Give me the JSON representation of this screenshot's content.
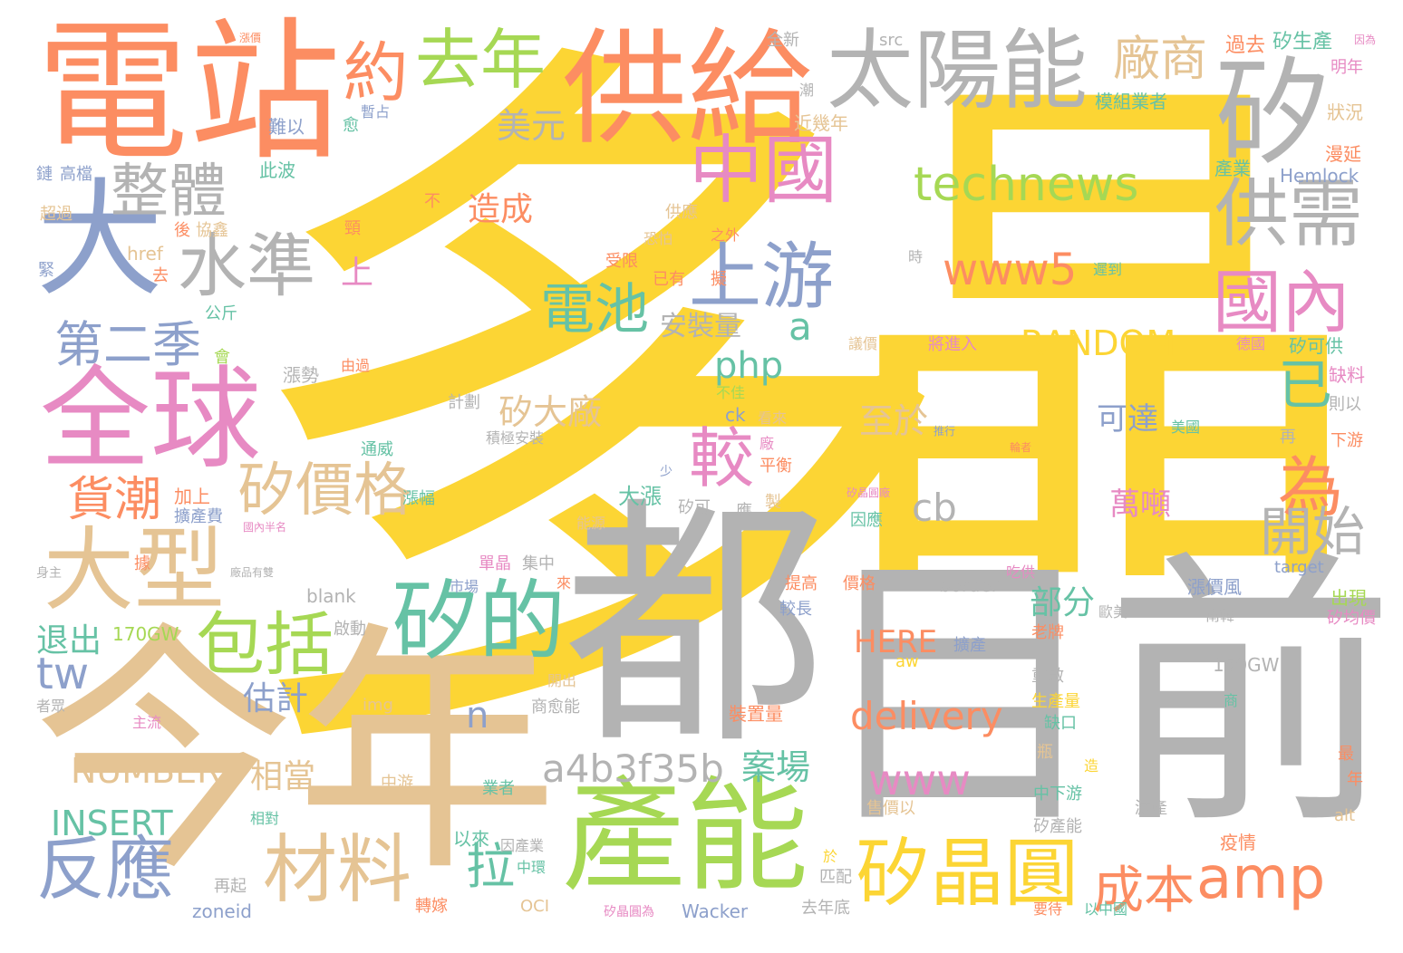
{
  "palette": {
    "yellow": "#fcd534",
    "grey": "#b3b3b3",
    "orange": "#fc8d62",
    "green": "#a6d854",
    "blue": "#8da0cb",
    "pink": "#e78ac3",
    "tan": "#e5c494",
    "teal": "#66c2a5",
    "background": "#ffffff"
  },
  "words": [
    {
      "text": "多",
      "color": "yellow"
    },
    {
      "text": "晶",
      "color": "yellow"
    },
    {
      "text": "目前",
      "color": "grey"
    },
    {
      "text": "都",
      "color": "grey"
    },
    {
      "text": "今年",
      "color": "tan"
    },
    {
      "text": "電站",
      "color": "orange"
    },
    {
      "text": "供給",
      "color": "orange"
    },
    {
      "text": "太陽能",
      "color": "grey"
    },
    {
      "text": "矽",
      "color": "grey"
    },
    {
      "text": "大",
      "color": "blue"
    },
    {
      "text": "全球",
      "color": "pink"
    },
    {
      "text": "產能",
      "color": "green"
    },
    {
      "text": "大型",
      "color": "tan"
    },
    {
      "text": "矽的",
      "color": "teal"
    },
    {
      "text": "中國",
      "color": "pink"
    },
    {
      "text": "供需",
      "color": "grey"
    },
    {
      "text": "國內",
      "color": "pink"
    },
    {
      "text": "上游",
      "color": "blue"
    },
    {
      "text": "去年",
      "color": "green"
    },
    {
      "text": "約",
      "color": "orange"
    },
    {
      "text": "廠商",
      "color": "tan"
    },
    {
      "text": "整體",
      "color": "grey"
    },
    {
      "text": "水準",
      "color": "grey"
    },
    {
      "text": "technews",
      "color": "green"
    },
    {
      "text": "www5",
      "color": "orange"
    },
    {
      "text": "包括",
      "color": "green"
    },
    {
      "text": "材料",
      "color": "tan"
    },
    {
      "text": "矽晶圓",
      "color": "yellow"
    },
    {
      "text": "amp",
      "color": "orange"
    },
    {
      "text": "反應",
      "color": "blue"
    },
    {
      "text": "矽價格",
      "color": "tan"
    },
    {
      "text": "電池",
      "color": "teal"
    },
    {
      "text": "較",
      "color": "pink"
    },
    {
      "text": "已",
      "color": "teal"
    },
    {
      "text": "為",
      "color": "orange"
    },
    {
      "text": "開始",
      "color": "grey"
    },
    {
      "text": "第二季",
      "color": "blue"
    },
    {
      "text": "貨潮",
      "color": "orange"
    },
    {
      "text": "美元",
      "color": "grey"
    },
    {
      "text": "www",
      "color": "pink"
    },
    {
      "text": "delivery",
      "color": "orange"
    },
    {
      "text": "a4b3f35b",
      "color": "grey"
    },
    {
      "text": "成本",
      "color": "orange"
    },
    {
      "text": "拉",
      "color": "teal"
    },
    {
      "text": "RANDOM",
      "color": "yellow"
    },
    {
      "text": "NUMBER",
      "color": "tan"
    },
    {
      "text": "INSERT",
      "color": "teal"
    },
    {
      "text": "php",
      "color": "teal"
    },
    {
      "text": "tw",
      "color": "blue"
    },
    {
      "text": "a",
      "color": "teal"
    },
    {
      "text": "cb",
      "color": "grey"
    },
    {
      "text": "n",
      "color": "blue"
    },
    {
      "text": "HERE",
      "color": "orange"
    },
    {
      "text": "造成",
      "color": "orange"
    },
    {
      "text": "安裝量",
      "color": "grey"
    },
    {
      "text": "矽大廠",
      "color": "tan"
    },
    {
      "text": "至於",
      "color": "tan"
    },
    {
      "text": "可達",
      "color": "blue"
    },
    {
      "text": "萬噸",
      "color": "pink"
    },
    {
      "text": "部分",
      "color": "teal"
    },
    {
      "text": "案場",
      "color": "teal"
    },
    {
      "text": "相當",
      "color": "tan"
    },
    {
      "text": "估計",
      "color": "blue"
    },
    {
      "text": "退出",
      "color": "teal"
    },
    {
      "text": "上",
      "color": "pink"
    },
    {
      "text": "170GW",
      "color": "green"
    },
    {
      "text": "150GW",
      "color": "grey"
    },
    {
      "text": "模組業者",
      "color": "teal"
    },
    {
      "text": "矽生產",
      "color": "teal"
    },
    {
      "text": "過去",
      "color": "orange"
    },
    {
      "text": "明年",
      "color": "pink"
    },
    {
      "text": "狀況",
      "color": "tan"
    },
    {
      "text": "漫延",
      "color": "orange"
    },
    {
      "text": "Hemlock",
      "color": "blue"
    },
    {
      "text": "產業",
      "color": "teal"
    },
    {
      "text": "近幾年",
      "color": "tan"
    },
    {
      "text": "src",
      "color": "grey"
    },
    {
      "text": "全新",
      "color": "grey"
    },
    {
      "text": "暫占",
      "color": "blue"
    },
    {
      "text": "難以",
      "color": "blue"
    },
    {
      "text": "此波",
      "color": "teal"
    },
    {
      "text": "高檔",
      "color": "blue"
    },
    {
      "text": "鏈",
      "color": "blue"
    },
    {
      "text": "超過",
      "color": "tan"
    },
    {
      "text": "協鑫",
      "color": "tan"
    },
    {
      "text": "緊",
      "color": "blue"
    },
    {
      "text": "href",
      "color": "tan"
    },
    {
      "text": "公斤",
      "color": "teal"
    },
    {
      "text": "供應",
      "color": "tan"
    },
    {
      "text": "恐怕",
      "color": "tan"
    },
    {
      "text": "之外",
      "color": "orange"
    },
    {
      "text": "受限",
      "color": "orange"
    },
    {
      "text": "已有",
      "color": "orange"
    },
    {
      "text": "擬",
      "color": "orange"
    },
    {
      "text": "遲到",
      "color": "teal"
    },
    {
      "text": "時",
      "color": "grey"
    },
    {
      "text": "議價",
      "color": "tan"
    },
    {
      "text": "將進入",
      "color": "pink"
    },
    {
      "text": "德國",
      "color": "pink"
    },
    {
      "text": "矽可供",
      "color": "teal"
    },
    {
      "text": "缺料",
      "color": "pink"
    },
    {
      "text": "則以",
      "color": "grey"
    },
    {
      "text": "漲勢",
      "color": "grey"
    },
    {
      "text": "由過",
      "color": "orange"
    },
    {
      "text": "計劃",
      "color": "grey"
    },
    {
      "text": "積極安裝",
      "color": "grey"
    },
    {
      "text": "看來",
      "color": "tan"
    },
    {
      "text": "不佳",
      "color": "green"
    },
    {
      "text": "ck",
      "color": "blue"
    },
    {
      "text": "美國",
      "color": "teal"
    },
    {
      "text": "再",
      "color": "grey"
    },
    {
      "text": "下游",
      "color": "orange"
    },
    {
      "text": "通威",
      "color": "teal"
    },
    {
      "text": "漲幅",
      "color": "teal"
    },
    {
      "text": "加上",
      "color": "orange"
    },
    {
      "text": "擴產費",
      "color": "blue"
    },
    {
      "text": "平衡",
      "color": "orange"
    },
    {
      "text": "大漲",
      "color": "teal"
    },
    {
      "text": "矽可",
      "color": "grey"
    },
    {
      "text": "應",
      "color": "grey"
    },
    {
      "text": "製",
      "color": "tan"
    },
    {
      "text": "能源",
      "color": "tan"
    },
    {
      "text": "因應",
      "color": "teal"
    },
    {
      "text": "矽晶圓廠",
      "color": "pink"
    },
    {
      "text": "集中",
      "color": "grey"
    },
    {
      "text": "單晶",
      "color": "pink"
    },
    {
      "text": "市場",
      "color": "blue"
    },
    {
      "text": "提高",
      "color": "orange"
    },
    {
      "text": "價格",
      "color": "orange"
    },
    {
      "text": "較長",
      "color": "blue"
    },
    {
      "text": "border",
      "color": "grey"
    },
    {
      "text": "吃供",
      "color": "pink"
    },
    {
      "text": "target",
      "color": "blue"
    },
    {
      "text": "漲價風",
      "color": "blue"
    },
    {
      "text": "出現",
      "color": "green"
    },
    {
      "text": "矽均價",
      "color": "pink"
    },
    {
      "text": "南韓",
      "color": "grey"
    },
    {
      "text": "歐美",
      "color": "grey"
    },
    {
      "text": "老牌",
      "color": "orange"
    },
    {
      "text": "擴產",
      "color": "blue"
    },
    {
      "text": "blank",
      "color": "grey"
    },
    {
      "text": "啟動",
      "color": "grey"
    },
    {
      "text": "開出",
      "color": "tan"
    },
    {
      "text": "aw",
      "color": "yellow"
    },
    {
      "text": "重啟",
      "color": "grey"
    },
    {
      "text": "生產量",
      "color": "yellow"
    },
    {
      "text": "缺口",
      "color": "teal"
    },
    {
      "text": "商愈能",
      "color": "grey"
    },
    {
      "text": "img",
      "color": "tan"
    },
    {
      "text": "主流",
      "color": "pink"
    },
    {
      "text": "中游",
      "color": "tan"
    },
    {
      "text": "業者",
      "color": "teal"
    },
    {
      "text": "裝置量",
      "color": "orange"
    },
    {
      "text": "售價以",
      "color": "tan"
    },
    {
      "text": "中下游",
      "color": "teal"
    },
    {
      "text": "減產",
      "color": "grey"
    },
    {
      "text": "矽產能",
      "color": "grey"
    },
    {
      "text": "疫情",
      "color": "orange"
    },
    {
      "text": "最",
      "color": "orange"
    },
    {
      "text": "年",
      "color": "orange"
    },
    {
      "text": "alt",
      "color": "tan"
    },
    {
      "text": "相對",
      "color": "teal"
    },
    {
      "text": "以來",
      "color": "teal"
    },
    {
      "text": "因產業",
      "color": "grey"
    },
    {
      "text": "中環",
      "color": "teal"
    },
    {
      "text": "再起",
      "color": "grey"
    },
    {
      "text": "轉嫁",
      "color": "orange"
    },
    {
      "text": "OCI",
      "color": "tan"
    },
    {
      "text": "矽晶圓為",
      "color": "pink"
    },
    {
      "text": "Wacker",
      "color": "blue"
    },
    {
      "text": "去年底",
      "color": "grey"
    },
    {
      "text": "以中國",
      "color": "teal"
    },
    {
      "text": "要待",
      "color": "orange"
    },
    {
      "text": "zoneid",
      "color": "blue"
    },
    {
      "text": "匹配",
      "color": "grey"
    },
    {
      "text": "於",
      "color": "yellow"
    },
    {
      "text": "造",
      "color": "yellow"
    },
    {
      "text": "瓶",
      "color": "tan"
    },
    {
      "text": "商",
      "color": "teal"
    },
    {
      "text": "不",
      "color": "orange"
    },
    {
      "text": "頸",
      "color": "orange"
    },
    {
      "text": "後",
      "color": "orange"
    },
    {
      "text": "去",
      "color": "orange"
    },
    {
      "text": "會",
      "color": "green"
    },
    {
      "text": "少",
      "color": "blue"
    },
    {
      "text": "大多",
      "color": "yellow"
    },
    {
      "text": "廠",
      "color": "pink"
    },
    {
      "text": "來",
      "color": "orange"
    },
    {
      "text": "據",
      "color": "orange"
    },
    {
      "text": "愈",
      "color": "teal"
    },
    {
      "text": "潮",
      "color": "grey"
    },
    {
      "text": "者眾",
      "color": "grey"
    },
    {
      "text": "廠品有雙",
      "color": "grey"
    },
    {
      "text": "國內半名",
      "color": "pink"
    },
    {
      "text": "身主",
      "color": "grey"
    },
    {
      "text": "推行",
      "color": "blue"
    },
    {
      "text": "輪者",
      "color": "orange"
    },
    {
      "text": "漲價",
      "color": "orange"
    },
    {
      "text": "因為",
      "color": "pink"
    }
  ]
}
